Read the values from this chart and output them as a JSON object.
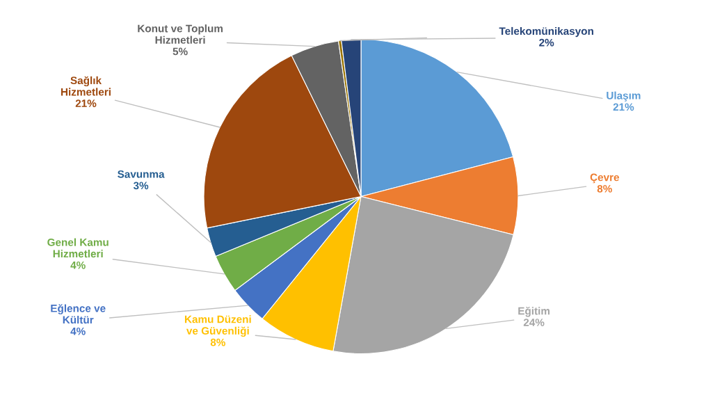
{
  "chart_data": {
    "type": "pie",
    "categories": [
      "Ulaşım",
      "Çevre",
      "Eğitim",
      "Kamu Düzeni\nve Güvenliği",
      "Eğlence ve\nKültür",
      "Genel Kamu\nHizmetleri",
      "Savunma",
      "Sağlık\nHizmetleri",
      "Konut ve Toplum\nHizmetleri",
      null,
      "Telekomünikasyon"
    ],
    "values": [
      21,
      8,
      24,
      8,
      4,
      4,
      3,
      21,
      5,
      0.3,
      2
    ],
    "value_labels": [
      "21%",
      "8%",
      "24%",
      "8%",
      "4%",
      "4%",
      "3%",
      "21%",
      "5%",
      null,
      "2%"
    ],
    "colors": [
      "#5b9bd5",
      "#ed7d31",
      "#a5a5a5",
      "#ffc000",
      "#4472c4",
      "#70ad47",
      "#255e91",
      "#9e480e",
      "#636363",
      "#997300",
      "#264478"
    ],
    "legend": false
  }
}
